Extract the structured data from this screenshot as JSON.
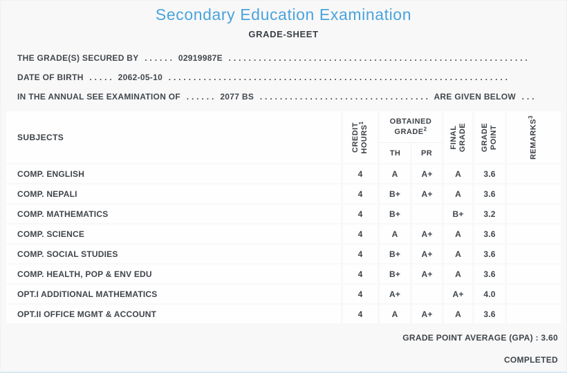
{
  "page": {
    "title": "Secondary Education Examination",
    "subtitle": "GRADE-SHEET",
    "accent_color": "#4aa3dc",
    "text_color": "#3f444a"
  },
  "info_lines": {
    "line1": {
      "label": "THE GRADE(S) SECURED BY",
      "dots1": ". . . . . .",
      "value": "02919987E",
      "dots2": ". . . . . . . . . . . . . . . . . . . . . . . . . . . . . . . . . . . . . . . . . . . . . . . . . . . . . . . . . . . ."
    },
    "line2": {
      "label": "DATE OF BIRTH",
      "dots1": ". . . . .",
      "value": "2062-05-10",
      "dots2": ". . . . . . . . . . . . . . . . . . . . . . . . . . . . . . . . . . . . . . . . . . . . . . . . . . . . . . . . . . . . . . . . . . . ."
    },
    "line3": {
      "label": "IN THE ANNUAL SEE EXAMINATION OF",
      "dots1": ". . . . . .",
      "value": "2077 BS",
      "dots2": ". . . . . . . . . . . . . . . . . . . . . . . . . . . . . . . . . .",
      "suffix": "ARE GIVEN BELOW",
      "dots3": ". . ."
    }
  },
  "table": {
    "header": {
      "subjects": "SUBJECTS",
      "credit_line1": "CREDIT",
      "credit_line2": "HOURS",
      "credit_sup": "1",
      "obtained_line1": "OBTAINED",
      "obtained_line2": "GRADE",
      "obtained_sup": "2",
      "th": "TH",
      "pr": "PR",
      "final_line1": "FINAL",
      "final_line2": "GRADE",
      "gp_line1": "GRADE",
      "gp_line2": "POINT",
      "remarks": "REMARKS",
      "remarks_sup": "3"
    },
    "rows": [
      {
        "subject": "COMP. ENGLISH",
        "credit": "4",
        "th": "A",
        "pr": "A+",
        "final": "A",
        "gp": "3.6",
        "remarks": ""
      },
      {
        "subject": "COMP. NEPALI",
        "credit": "4",
        "th": "B+",
        "pr": "A+",
        "final": "A",
        "gp": "3.6",
        "remarks": ""
      },
      {
        "subject": "COMP. MATHEMATICS",
        "credit": "4",
        "th": "B+",
        "pr": "",
        "final": "B+",
        "gp": "3.2",
        "remarks": ""
      },
      {
        "subject": "COMP. SCIENCE",
        "credit": "4",
        "th": "A",
        "pr": "A+",
        "final": "A",
        "gp": "3.6",
        "remarks": ""
      },
      {
        "subject": "COMP. SOCIAL STUDIES",
        "credit": "4",
        "th": "B+",
        "pr": "A+",
        "final": "A",
        "gp": "3.6",
        "remarks": ""
      },
      {
        "subject": "COMP. HEALTH, POP & ENV EDU",
        "credit": "4",
        "th": "B+",
        "pr": "A+",
        "final": "A",
        "gp": "3.6",
        "remarks": ""
      },
      {
        "subject": "OPT.I ADDITIONAL MATHEMATICS",
        "credit": "4",
        "th": "A+",
        "pr": "",
        "final": "A+",
        "gp": "4.0",
        "remarks": ""
      },
      {
        "subject": "OPT.II OFFICE MGMT & ACCOUNT",
        "credit": "4",
        "th": "A",
        "pr": "A+",
        "final": "A",
        "gp": "3.6",
        "remarks": ""
      }
    ]
  },
  "footer": {
    "gpa_label": "GRADE POINT AVERAGE (GPA) : 3.60",
    "status": "COMPLETED"
  }
}
